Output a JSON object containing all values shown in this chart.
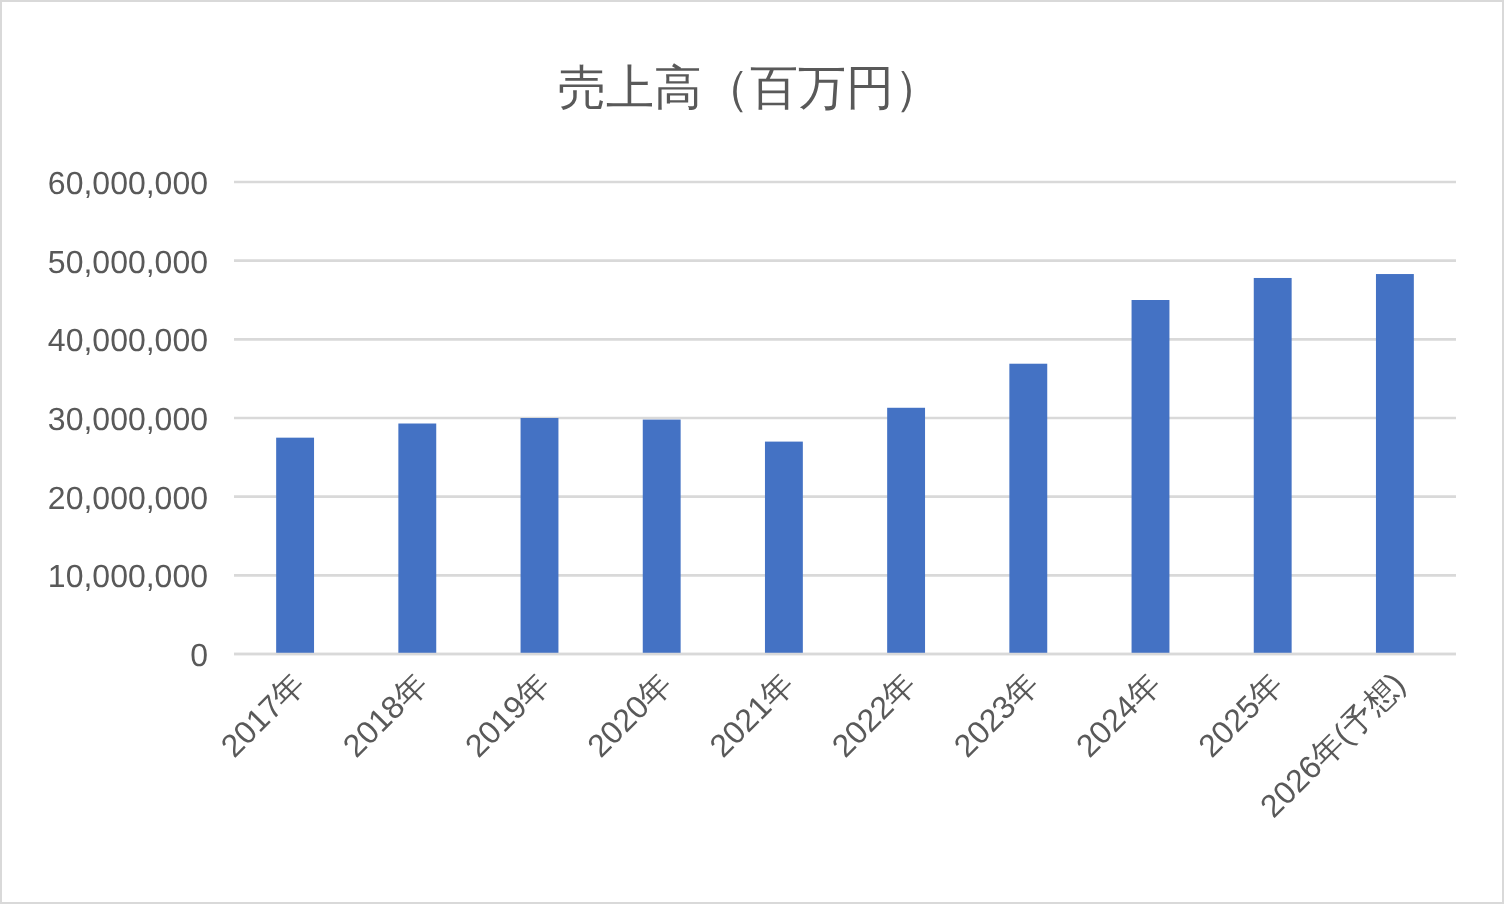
{
  "chart_data": {
    "type": "bar",
    "title": "売上高（百万円）",
    "categories": [
      "2017年",
      "2018年",
      "2019年",
      "2020年",
      "2021年",
      "2022年",
      "2023年",
      "2024年",
      "2025年",
      "2026年(予想)"
    ],
    "values": [
      27500000,
      29300000,
      30000000,
      29800000,
      27000000,
      31300000,
      36900000,
      45000000,
      47800000,
      48300000
    ],
    "color": "#4472c4",
    "ylim": [
      0,
      60000000
    ],
    "yticks": [
      {
        "value": 0,
        "label": "0"
      },
      {
        "value": 10000000,
        "label": "10,000,000"
      },
      {
        "value": 20000000,
        "label": "20,000,000"
      },
      {
        "value": 30000000,
        "label": "30,000,000"
      },
      {
        "value": 40000000,
        "label": "40,000,000"
      },
      {
        "value": 50000000,
        "label": "50,000,000"
      },
      {
        "value": 60000000,
        "label": "60,000,000"
      }
    ],
    "grid": "y"
  }
}
